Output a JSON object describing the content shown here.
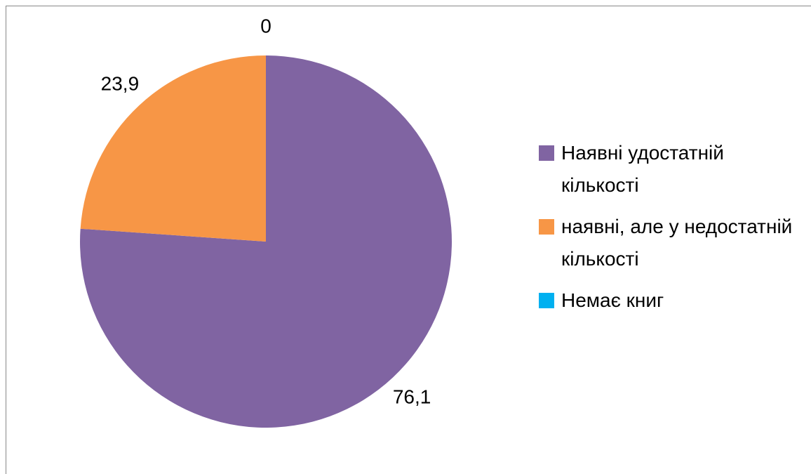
{
  "chart_data": {
    "type": "pie",
    "categories": [
      "Наявні удостатній кількості",
      "наявні, але у недостатній кількості",
      "Немає книг"
    ],
    "values": [
      76.1,
      23.9,
      0
    ],
    "value_labels": [
      "76,1",
      "23,9",
      "0"
    ],
    "colors": [
      "#8064a2",
      "#f79646",
      "#00b0f0"
    ],
    "legend": "right"
  }
}
